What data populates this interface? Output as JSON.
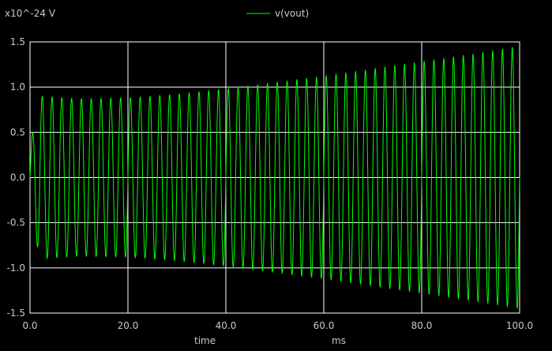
{
  "chart_data": {
    "type": "line",
    "title": "",
    "y_scale_label": "x10^-24 V",
    "xlabel": "time",
    "x_unit": "ms",
    "xlim": [
      0,
      100
    ],
    "ylim": [
      -1.5,
      1.5
    ],
    "x_ticks": [
      "0.0",
      "20.0",
      "40.0",
      "60.0",
      "80.0",
      "100.0"
    ],
    "y_ticks": [
      "1.5",
      "1.0",
      "0.5",
      "0.0",
      "-0.5",
      "-1.0",
      "-1.5"
    ],
    "grid": true,
    "legend_position": "top-center",
    "series": [
      {
        "name": "v(vout)",
        "color": "#00ff00",
        "waveform": "sinusoid",
        "frequency_khz": 0.5,
        "x": [
          0,
          2,
          10,
          20,
          30,
          40,
          50,
          60,
          70,
          80,
          90,
          100
        ],
        "amplitude": [
          0.35,
          0.9,
          0.87,
          0.88,
          0.92,
          0.98,
          1.05,
          1.12,
          1.2,
          1.28,
          1.36,
          1.45
        ]
      }
    ]
  },
  "colors": {
    "background": "#000000",
    "grid": "#ffffff",
    "text": "#c8c8c8",
    "trace": "#00ff00"
  }
}
